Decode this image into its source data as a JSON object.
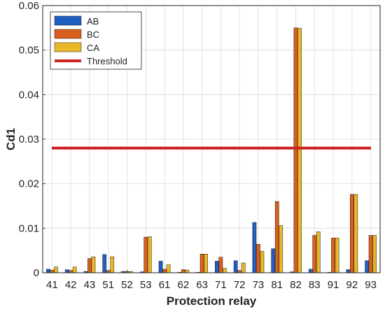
{
  "chart_data": {
    "type": "bar",
    "title": "",
    "xlabel": "Protection relay",
    "ylabel": "Cd1",
    "ylim": [
      0,
      0.06
    ],
    "yticks": [
      0,
      0.01,
      0.02,
      0.03,
      0.04,
      0.05,
      0.06
    ],
    "ytick_labels": [
      "0",
      "0.01",
      "0.02",
      "0.03",
      "0.04",
      "0.05",
      "0.06"
    ],
    "categories": [
      "41",
      "42",
      "43",
      "51",
      "52",
      "53",
      "61",
      "62",
      "63",
      "71",
      "72",
      "73",
      "81",
      "82",
      "83",
      "91",
      "92",
      "93"
    ],
    "series": [
      {
        "name": "AB",
        "color": "#1f5fbf",
        "values": [
          0.0008,
          0.0007,
          0.0003,
          0.0041,
          0.0003,
          0.0002,
          0.0026,
          0.0001,
          0.0001,
          0.0026,
          0.0027,
          0.0113,
          0.0054,
          0.0002,
          0.0008,
          0.0001,
          0.0007,
          0.0027
        ]
      },
      {
        "name": "BC",
        "color": "#d9601c",
        "values": [
          0.0006,
          0.0005,
          0.0032,
          0.0005,
          0.0003,
          0.008,
          0.0008,
          0.0007,
          0.0042,
          0.0035,
          0.0005,
          0.0064,
          0.016,
          0.055,
          0.0084,
          0.0078,
          0.0176,
          0.0084
        ]
      },
      {
        "name": "CA",
        "color": "#e8b82a",
        "values": [
          0.0013,
          0.0013,
          0.0036,
          0.0036,
          0.0003,
          0.0081,
          0.0018,
          0.0006,
          0.0042,
          0.001,
          0.0022,
          0.0048,
          0.0106,
          0.0549,
          0.0092,
          0.0078,
          0.0176,
          0.0084
        ]
      }
    ],
    "threshold": {
      "name": "Threshold",
      "value": 0.028,
      "color": "#cc2222"
    },
    "legend_position": "top-left",
    "grid": true
  }
}
